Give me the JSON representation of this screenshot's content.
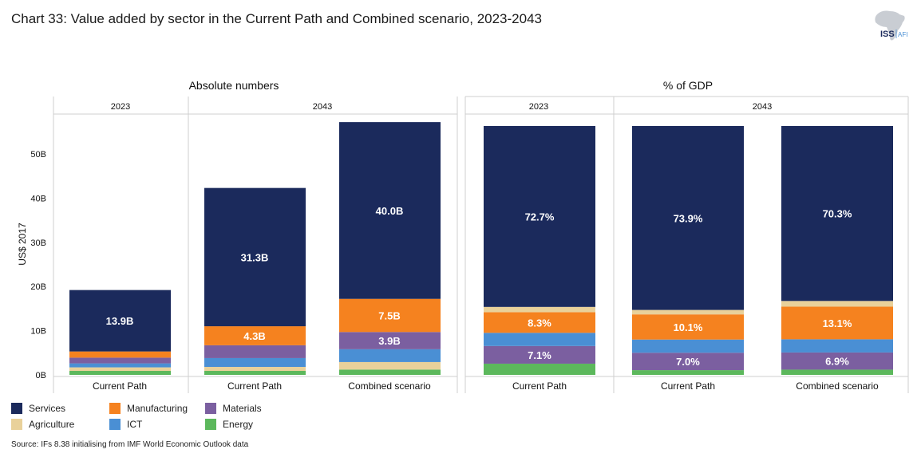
{
  "title": "Chart 33: Value added by sector in the Current Path and Combined scenario, 2023-2043",
  "logo": {
    "brand": "ISS",
    "sub": "AFI"
  },
  "source": "Source: IFs 8.38 initialising from IMF World Economic Outlook data",
  "colors": {
    "Services": "#1b2a5c",
    "Manufacturing": "#f5821f",
    "Materials": "#7b5fa0",
    "Agriculture": "#e9d19a",
    "ICT": "#4a8fd4",
    "Energy": "#5cb85c"
  },
  "legend": [
    "Services",
    "Manufacturing",
    "Materials",
    "Agriculture",
    "ICT",
    "Energy"
  ],
  "chart_data": [
    {
      "type": "bar",
      "stacked": true,
      "title": "Absolute numbers",
      "ylabel": "US$ 2017",
      "ylim": [
        0,
        58
      ],
      "ticks": [
        0,
        10,
        20,
        30,
        40,
        50
      ],
      "tick_labels": [
        "0B",
        "10B",
        "20B",
        "30B",
        "40B",
        "50B"
      ],
      "groups": [
        {
          "label": "2023",
          "categories": [
            "Current Path"
          ]
        },
        {
          "label": "2043",
          "categories": [
            "Current Path",
            "Combined scenario"
          ]
        }
      ],
      "stack_order": [
        "Energy",
        "Agriculture",
        "ICT",
        "Materials",
        "Manufacturing",
        "Services"
      ],
      "bars": [
        {
          "category": "Current Path",
          "group": "2023",
          "values": {
            "Energy": 0.9,
            "Agriculture": 0.8,
            "ICT": 0.9,
            "Materials": 1.3,
            "Manufacturing": 1.4,
            "Services": 13.9
          },
          "labels": {
            "Services": "13.9B"
          }
        },
        {
          "category": "Current Path",
          "group": "2043",
          "values": {
            "Energy": 0.9,
            "Agriculture": 0.9,
            "ICT": 2.0,
            "Materials": 2.9,
            "Manufacturing": 4.3,
            "Services": 31.3
          },
          "labels": {
            "Services": "31.3B",
            "Manufacturing": "4.3B"
          }
        },
        {
          "category": "Combined scenario",
          "group": "2043",
          "values": {
            "Energy": 1.2,
            "Agriculture": 1.7,
            "ICT": 2.9,
            "Materials": 3.9,
            "Manufacturing": 7.5,
            "Services": 40.0
          },
          "labels": {
            "Services": "40.0B",
            "Manufacturing": "7.5B",
            "Materials": "3.9B"
          }
        }
      ]
    },
    {
      "type": "bar",
      "stacked": true,
      "title": "% of GDP",
      "ylim": [
        0,
        100
      ],
      "groups": [
        {
          "label": "2023",
          "categories": [
            "Current Path"
          ]
        },
        {
          "label": "2043",
          "categories": [
            "Current Path",
            "Combined scenario"
          ]
        }
      ],
      "stack_order": [
        "Energy",
        "Materials",
        "ICT",
        "Manufacturing",
        "Agriculture",
        "Services"
      ],
      "bars": [
        {
          "category": "Current Path",
          "group": "2023",
          "values": {
            "Energy": 4.5,
            "Materials": 7.1,
            "ICT": 5.3,
            "Manufacturing": 8.3,
            "Agriculture": 2.1,
            "Services": 72.7
          },
          "labels": {
            "Services": "72.7%",
            "Manufacturing": "8.3%",
            "Materials": "7.1%"
          }
        },
        {
          "category": "Current Path",
          "group": "2043",
          "values": {
            "Energy": 1.9,
            "Materials": 7.0,
            "ICT": 5.3,
            "Manufacturing": 10.1,
            "Agriculture": 1.8,
            "Services": 73.9
          },
          "labels": {
            "Services": "73.9%",
            "Manufacturing": "10.1%",
            "Materials": "7.0%"
          }
        },
        {
          "category": "Combined scenario",
          "group": "2043",
          "values": {
            "Energy": 2.1,
            "Materials": 6.9,
            "ICT": 5.3,
            "Manufacturing": 13.1,
            "Agriculture": 2.3,
            "Services": 70.3
          },
          "labels": {
            "Services": "70.3%",
            "Manufacturing": "13.1%",
            "Materials": "6.9%"
          }
        }
      ]
    }
  ]
}
